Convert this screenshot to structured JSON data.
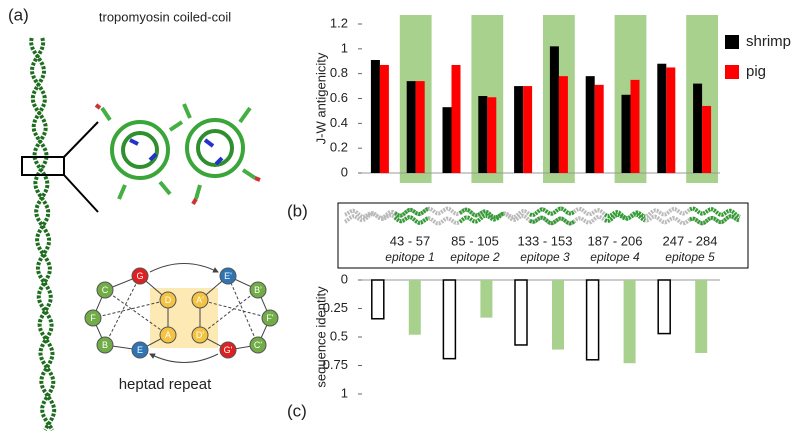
{
  "panels": {
    "a": "(a)",
    "b": "(b)",
    "c": "(c)"
  },
  "structure_title": "tropomyosin  coiled-coil",
  "heptad_label": "heptad repeat",
  "wheel_labels": [
    "C",
    "F",
    "B",
    "G",
    "D",
    "A",
    "E",
    "A'",
    "D'",
    "E'",
    "G'",
    "B'",
    "F'",
    "C'"
  ],
  "epitopes": [
    {
      "range": "43  - 57",
      "name": "epitope 1"
    },
    {
      "range": "85   -   105",
      "name": "epitope 2"
    },
    {
      "range": "133 - 153",
      "name": "epitope 3"
    },
    {
      "range": "187  - 206",
      "name": "epitope 4"
    },
    {
      "range": "247  -   284",
      "name": "epitope 5"
    }
  ],
  "chart_data": [
    {
      "type": "bar",
      "ylabel": "J-W antigenicity",
      "categories": [
        null,
        null,
        null,
        null,
        null,
        null,
        null,
        null,
        null,
        null
      ],
      "series": [
        {
          "name": "shrimp",
          "color": "#000000",
          "values": [
            0.91,
            0.74,
            0.53,
            0.62,
            0.7,
            1.02,
            0.78,
            0.63,
            0.88,
            0.72
          ]
        },
        {
          "name": "pig",
          "color": "#ff0000",
          "values": [
            0.87,
            0.74,
            0.87,
            0.61,
            0.7,
            0.78,
            0.71,
            0.75,
            0.85,
            0.54
          ]
        }
      ],
      "ylim": [
        0,
        1.2
      ],
      "yticks": [
        0,
        0.2,
        0.4,
        0.6,
        0.8,
        1,
        1.2
      ],
      "band_color": "#a9d18e",
      "legend": "right"
    },
    {
      "type": "bar",
      "ylabel": "sequence identity",
      "y_inverted": true,
      "categories": [
        null,
        null,
        null,
        null,
        null
      ],
      "series": [
        {
          "color": "#ffffff",
          "edge_color": "#000000",
          "values": [
            0.34,
            0.69,
            0.57,
            0.7,
            0.47
          ]
        },
        {
          "color": "#a9d18e",
          "values": [
            0.48,
            0.33,
            0.61,
            0.73,
            0.64
          ]
        }
      ],
      "ylim": [
        0,
        1
      ],
      "yticks": [
        0,
        0.25,
        0.5,
        0.75,
        1
      ]
    }
  ]
}
